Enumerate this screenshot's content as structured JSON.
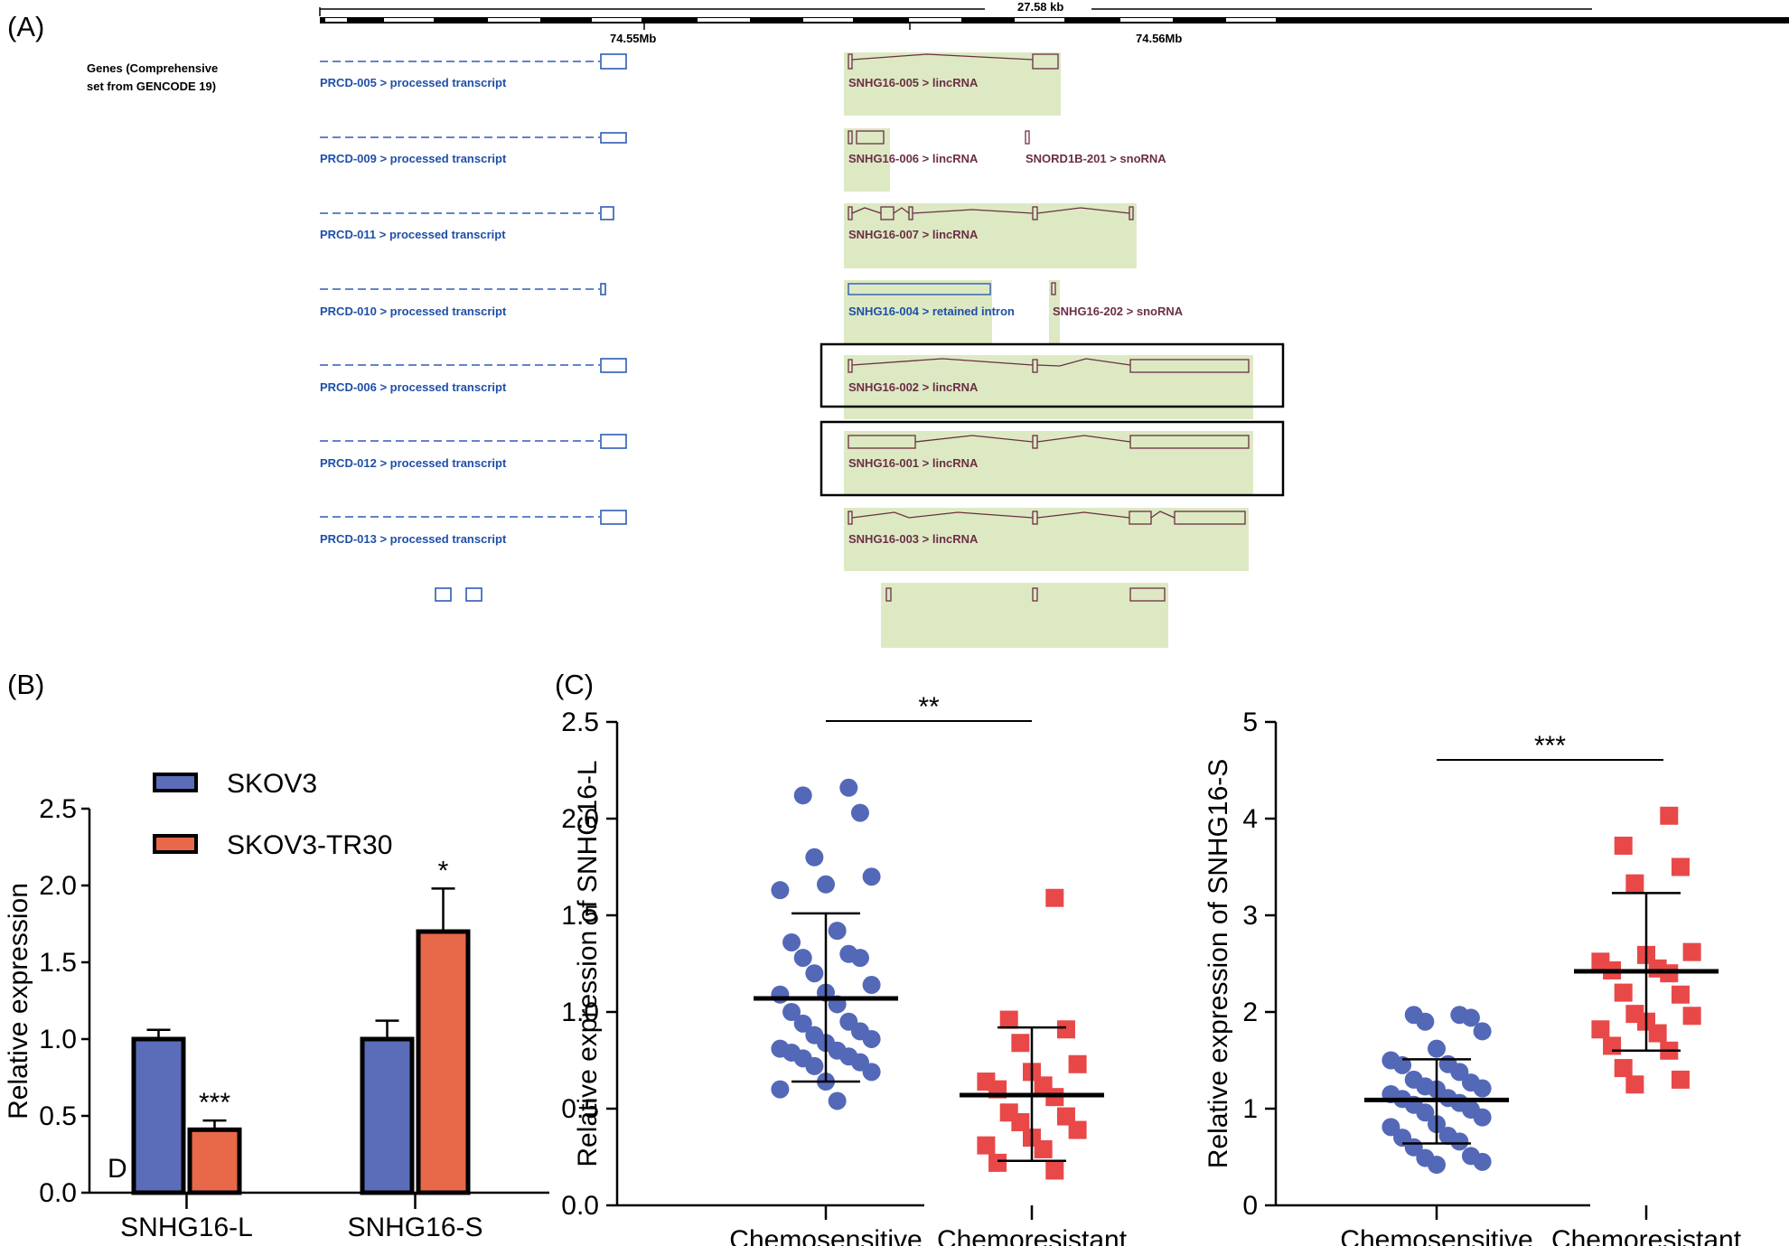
{
  "panel_labels": {
    "a": "(A)",
    "b": "(B)",
    "c": "(C)"
  },
  "colors": {
    "prcd": "#1f4fa8",
    "snhg": "#6b2f45",
    "highlight": "#dde9c3",
    "blue_bar": "#5b6db8",
    "orange_bar": "#e8684a",
    "blue_dot": "#5468b8",
    "red_square": "#e84848"
  },
  "track": {
    "scale_text": "27.58 kb",
    "left_coord": "74.55Mb",
    "right_coord": "74.56Mb",
    "heading_line1": "Genes (Comprehensive",
    "heading_line2": "set from GENCODE 19)"
  },
  "transcripts": {
    "prcd": [
      "PRCD-005 > processed transcript",
      "PRCD-009 > processed transcript",
      "PRCD-011 > processed transcript",
      "PRCD-010 > processed transcript",
      "PRCD-006 > processed transcript",
      "PRCD-012 > processed transcript",
      "PRCD-013 > processed transcript"
    ],
    "snhg": [
      "SNHG16-005 > lincRNA",
      "SNHG16-006 > lincRNA",
      "SNHG16-007 > lincRNA",
      "SNHG16-004 > retained intron",
      "SNHG16-002 > lincRNA",
      "SNHG16-001 > lincRNA",
      "SNHG16-003 > lincRNA"
    ],
    "snord": "SNORD1B-201 > snoRNA",
    "snhg202": "SNHG16-202 > snoRNA"
  },
  "chart_data": [
    {
      "panel": "B",
      "type": "bar",
      "categories": [
        "SNHG16-L",
        "SNHG16-S"
      ],
      "series": [
        {
          "name": "SKOV3",
          "values": [
            1.0,
            1.0
          ],
          "errors": [
            0.06,
            0.12
          ]
        },
        {
          "name": "SKOV3-TR30",
          "values": [
            0.41,
            1.7
          ],
          "errors": [
            0.06,
            0.28
          ]
        }
      ],
      "significance": [
        "***",
        "*"
      ],
      "ylabel": "Relative expression",
      "ylim": [
        0.0,
        2.5
      ],
      "yticks": [
        "0.0",
        "0.5",
        "1.0",
        "1.5",
        "2.0",
        "2.5"
      ],
      "legend_position": "top-left",
      "corner_text": "D"
    },
    {
      "panel": "C-left",
      "type": "scatter",
      "categories": [
        "Chemosensitive",
        "Chemoresistant"
      ],
      "ylabel": "Relative expression of SNHG16-L",
      "ylim": [
        0.0,
        2.5
      ],
      "yticks": [
        "0.0",
        "0.5",
        "1.0",
        "1.5",
        "2.0",
        "2.5"
      ],
      "significance": "**",
      "groups": [
        {
          "name": "Chemosensitive",
          "mean": 1.07,
          "sd_low": 0.64,
          "sd_high": 1.51,
          "points": [
            2.16,
            2.12,
            2.03,
            1.8,
            1.7,
            1.66,
            1.63,
            1.42,
            1.36,
            1.3,
            1.28,
            1.28,
            1.2,
            1.14,
            1.1,
            1.09,
            1.04,
            1.0,
            0.95,
            0.94,
            0.9,
            0.88,
            0.86,
            0.84,
            0.81,
            0.8,
            0.79,
            0.77,
            0.76,
            0.74,
            0.72,
            0.69,
            0.64,
            0.6,
            0.54
          ]
        },
        {
          "name": "Chemoresistant",
          "mean": 0.57,
          "sd_low": 0.23,
          "sd_high": 0.92,
          "points": [
            1.59,
            0.96,
            0.91,
            0.84,
            0.73,
            0.69,
            0.64,
            0.62,
            0.6,
            0.56,
            0.48,
            0.46,
            0.43,
            0.39,
            0.35,
            0.31,
            0.29,
            0.22,
            0.18
          ]
        }
      ]
    },
    {
      "panel": "C-right",
      "type": "scatter",
      "categories": [
        "Chemosensitive",
        "Chemoresistant"
      ],
      "ylabel": "Relative expression of SNHG16-S",
      "ylim": [
        0,
        5
      ],
      "yticks": [
        "0",
        "1",
        "2",
        "3",
        "4",
        "5"
      ],
      "significance": "***",
      "groups": [
        {
          "name": "Chemosensitive",
          "mean": 1.09,
          "sd_low": 0.64,
          "sd_high": 1.51,
          "points": [
            1.97,
            1.97,
            1.94,
            1.9,
            1.8,
            1.62,
            1.5,
            1.46,
            1.45,
            1.38,
            1.3,
            1.27,
            1.23,
            1.21,
            1.2,
            1.15,
            1.11,
            1.1,
            1.06,
            1.04,
            0.99,
            0.96,
            0.91,
            0.84,
            0.81,
            0.72,
            0.7,
            0.66,
            0.6,
            0.51,
            0.49,
            0.45,
            0.42
          ]
        },
        {
          "name": "Chemoresistant",
          "mean": 2.42,
          "sd_low": 1.6,
          "sd_high": 3.23,
          "points": [
            4.03,
            3.72,
            3.5,
            3.33,
            2.62,
            2.59,
            2.52,
            2.45,
            2.43,
            2.4,
            2.2,
            2.18,
            1.98,
            1.96,
            1.9,
            1.82,
            1.78,
            1.65,
            1.6,
            1.42,
            1.3,
            1.25
          ]
        }
      ]
    }
  ]
}
